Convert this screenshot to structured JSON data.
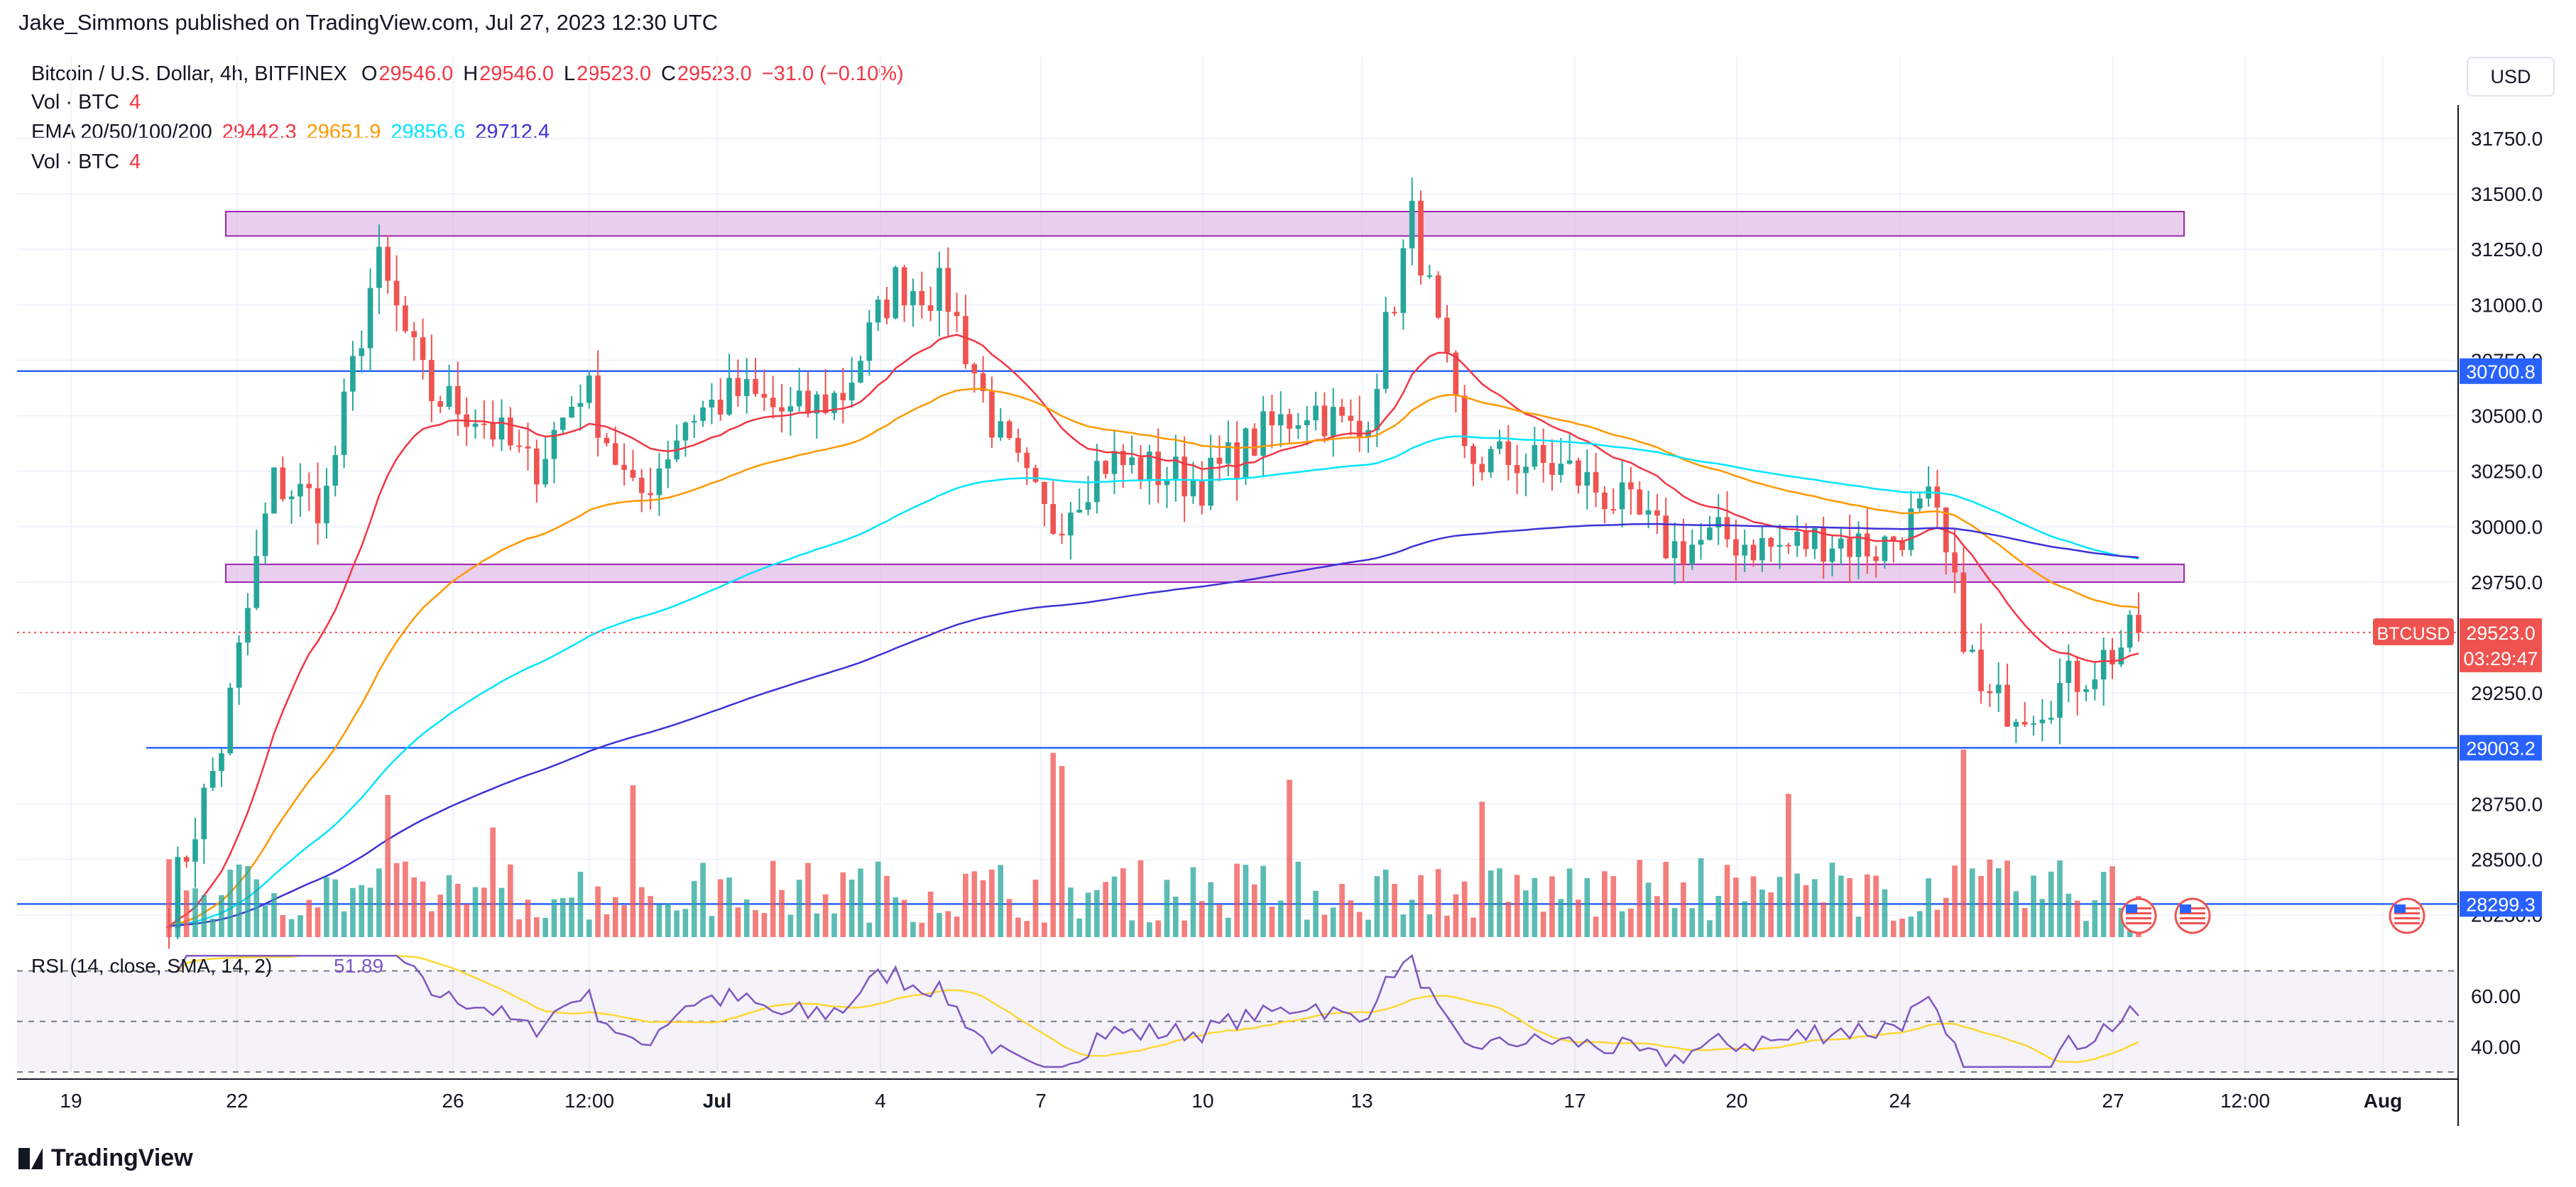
{
  "header": {
    "published": "Jake_Simmons published on TradingView.com, Jul 27, 2023 12:30 UTC",
    "symbol": "Bitcoin / U.S. Dollar, 4h, BITFINEX",
    "ohlc": {
      "o_label": "O",
      "o": "29546.0",
      "h_label": "H",
      "h": "29546.0",
      "l_label": "L",
      "l": "29523.0",
      "c_label": "C",
      "c": "29523.0",
      "change": "−31.0 (−0.10%)"
    },
    "vol_label": "Vol · BTC",
    "vol_value": "4",
    "ema_label": "EMA 20/50/100/200",
    "ema_values": {
      "e20": "29442.3",
      "e50": "29651.9",
      "e100": "29856.6",
      "e200": "29712.4"
    },
    "vol2_label": "Vol · BTC",
    "vol2_value": "4"
  },
  "currency_button": "USD",
  "footer_logo": "TradingView",
  "colors": {
    "up": "#26a69a",
    "down": "#ef5350",
    "ema20": "#f23645",
    "ema50": "#ff9800",
    "ema100": "#00e5ff",
    "ema200": "#3f32d6",
    "hline": "#2962ff",
    "zone": "#e1bee7",
    "zone_border": "#9c27b0",
    "rsi": "#7e57c2",
    "rsi_sma": "#fdd835"
  },
  "chart_data": {
    "type": "candlestick",
    "timeframe": "4h",
    "ylim": [
      28150,
      31900
    ],
    "y_ticks": [
      "31750.0",
      "31500.0",
      "31250.0",
      "31000.0",
      "30750.0",
      "30500.0",
      "30250.0",
      "30000.0",
      "29750.0",
      "29250.0",
      "28750.0",
      "28500.0",
      "28250.0"
    ],
    "x_ticks": [
      "19",
      "22",
      "26",
      "12:00",
      "Jul",
      "4",
      "7",
      "10",
      "13",
      "17",
      "20",
      "24",
      "27",
      "12:00",
      "Aug"
    ],
    "price_labels": [
      {
        "value": 30700.8,
        "text": "30700.8"
      },
      {
        "value": 29003.2,
        "text": "29003.2"
      },
      {
        "value": 28299.3,
        "text": "28299.3"
      }
    ],
    "last_price": {
      "value": 29523.0,
      "symbol": "BTCUSD",
      "price": "29523.0",
      "countdown": "03:29:47"
    },
    "zones": [
      {
        "low": 31310,
        "high": 31420
      },
      {
        "low": 29750,
        "high": 29830
      }
    ],
    "horizontal_lines": [
      30700.8,
      29003.2,
      28299.3
    ],
    "candles_anchor": [
      {
        "t": "Jun 20",
        "price": 28300
      },
      {
        "t": "Jun 21",
        "price": 29000
      },
      {
        "t": "Jun 21 pm",
        "price": 30200
      },
      {
        "t": "Jun 22",
        "price": 30100
      },
      {
        "t": "Jun 23",
        "price": 31200
      },
      {
        "t": "Jun 24",
        "price": 30600
      },
      {
        "t": "Jun 25",
        "price": 30500
      },
      {
        "t": "Jun 26",
        "price": 30250
      },
      {
        "t": "Jun 27",
        "price": 30650
      },
      {
        "t": "Jun 28",
        "price": 30100
      },
      {
        "t": "Jun 29",
        "price": 30500
      },
      {
        "t": "Jun 30",
        "price": 30600
      },
      {
        "t": "Jul 1",
        "price": 30500
      },
      {
        "t": "Jul 2",
        "price": 30600
      },
      {
        "t": "Jul 3",
        "price": 31100
      },
      {
        "t": "Jul 4",
        "price": 31050
      },
      {
        "t": "Jul 5",
        "price": 30400
      },
      {
        "t": "Jul 6",
        "price": 30000
      },
      {
        "t": "Jul 7",
        "price": 30300
      },
      {
        "t": "Jul 8",
        "price": 30250
      },
      {
        "t": "Jul 9",
        "price": 30200
      },
      {
        "t": "Jul 10",
        "price": 30400
      },
      {
        "t": "Jul 11",
        "price": 30550
      },
      {
        "t": "Jul 12",
        "price": 30400
      },
      {
        "t": "Jul 13",
        "price": 31400
      },
      {
        "t": "Jul 14",
        "price": 30300
      },
      {
        "t": "Jul 15",
        "price": 30300
      },
      {
        "t": "Jul 16",
        "price": 30250
      },
      {
        "t": "Jul 17",
        "price": 30100
      },
      {
        "t": "Jul 18",
        "price": 29900
      },
      {
        "t": "Jul 19",
        "price": 29950
      },
      {
        "t": "Jul 20",
        "price": 29900
      },
      {
        "t": "Jul 21",
        "price": 29950
      },
      {
        "t": "Jul 22",
        "price": 29900
      },
      {
        "t": "Jul 23",
        "price": 30100
      },
      {
        "t": "Jul 24",
        "price": 29200
      },
      {
        "t": "Jul 25",
        "price": 29200
      },
      {
        "t": "Jul 26",
        "price": 29350
      },
      {
        "t": "Jul 27",
        "price": 29523
      }
    ],
    "rsi": {
      "label": "RSI (14, close, SMA, 14, 2)",
      "value": "51.89",
      "ylim": [
        30,
        80
      ],
      "y_ticks": [
        "60.00",
        "40.00"
      ],
      "levels": [
        70,
        50,
        30
      ]
    }
  }
}
